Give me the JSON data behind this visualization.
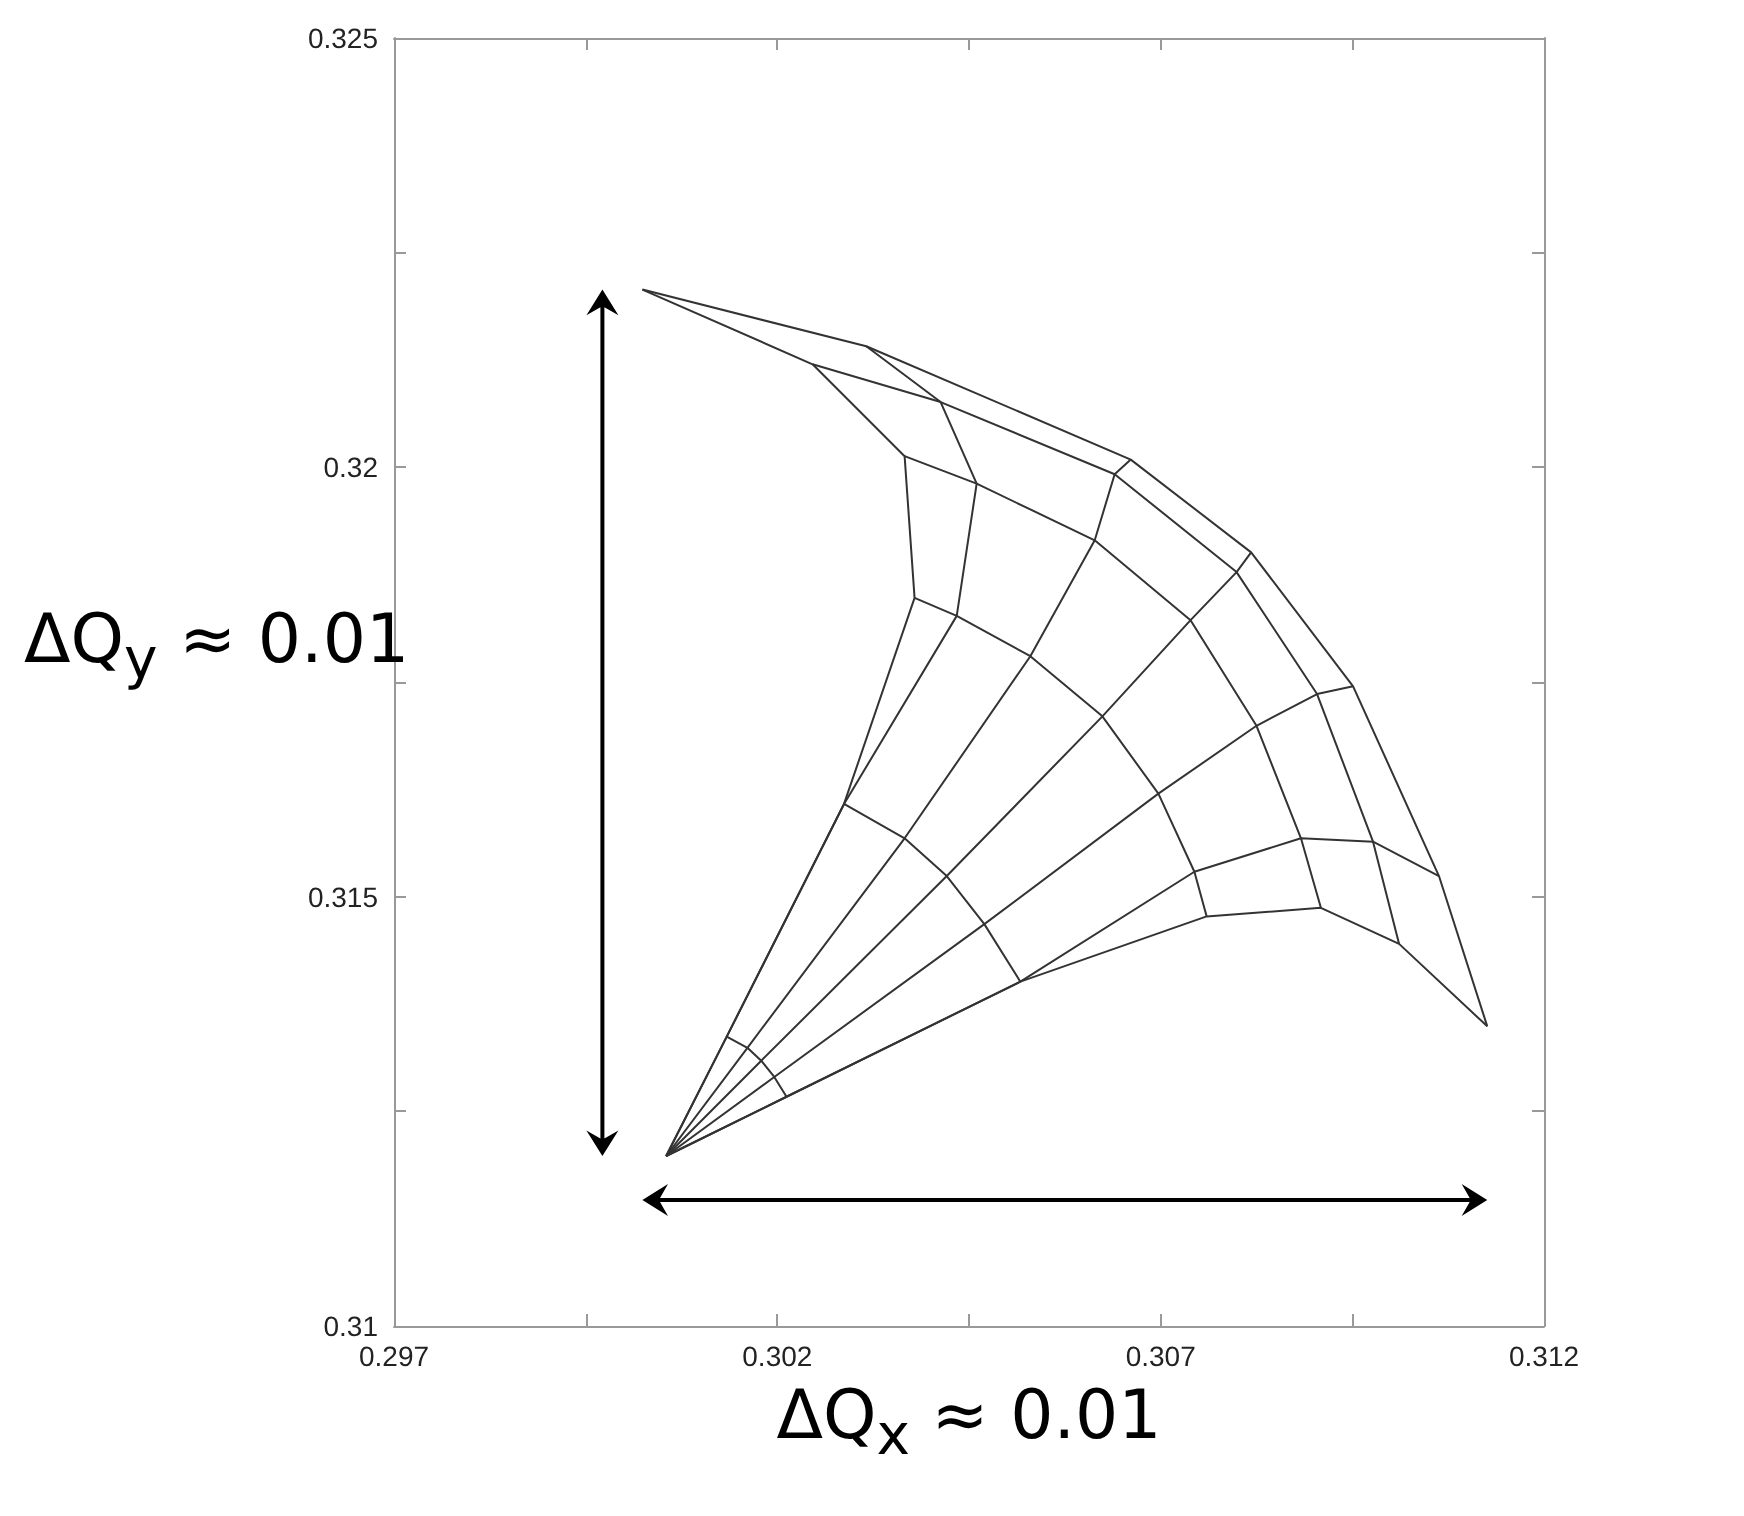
{
  "chart_data": {
    "type": "line",
    "xlim": [
      0.297,
      0.312
    ],
    "ylim": [
      0.31,
      0.325
    ],
    "xticks": [
      0.297,
      {
        "value": 0.2995,
        "label": null
      },
      0.302,
      {
        "value": 0.3045,
        "label": null
      },
      0.307,
      {
        "value": 0.3095,
        "label": null
      },
      0.312
    ],
    "yticks": [
      0.31,
      {
        "value": 0.3125,
        "label": null
      },
      0.315,
      {
        "value": 0.3175,
        "label": null
      },
      0.32,
      {
        "value": 0.3225,
        "label": null
      },
      0.325
    ],
    "grid": false,
    "marker": "none",
    "line_style": "solid",
    "annotations": [
      "ΔQ$_{y}$ ≈ 0.01",
      "ΔQ$_{x}$ ≈ 0.01"
    ],
    "series": [
      {
        "color": "#333333",
        "x": [
          0.30055,
          0.30134,
          0.30287,
          0.30379,
          0.30366,
          0.30246,
          0.30024
        ],
        "values": [
          0.31198,
          0.31337,
          0.31608,
          0.31848,
          0.32013,
          0.3212,
          0.32207
        ]
      },
      {
        "color": "#333333",
        "x": [
          0.30055,
          0.30134,
          0.30287,
          0.30434,
          0.3046,
          0.30413,
          0.30316
        ],
        "values": [
          0.31198,
          0.31337,
          0.31608,
          0.31827,
          0.31981,
          0.32076,
          0.32141
        ]
      },
      {
        "color": "#333333",
        "x": [
          0.30055,
          0.30161,
          0.30366,
          0.3053,
          0.30614,
          0.3064,
          0.30661
        ],
        "values": [
          0.31198,
          0.31324,
          0.31568,
          0.3178,
          0.31915,
          0.31992,
          0.32009
        ]
      },
      {
        "color": "#333333",
        "x": [
          0.30055,
          0.30179,
          0.30421,
          0.30624,
          0.30739,
          0.30799,
          0.30818
        ],
        "values": [
          0.31198,
          0.31309,
          0.31524,
          0.3171,
          0.31822,
          0.31878,
          0.31901
        ]
      },
      {
        "color": "#333333",
        "x": [
          0.30055,
          0.30196,
          0.3047,
          0.30697,
          0.30825,
          0.30904,
          0.30951
        ],
        "values": [
          0.31198,
          0.3129,
          0.31468,
          0.3162,
          0.31699,
          0.31736,
          0.31745
        ]
      },
      {
        "color": "#333333",
        "x": [
          0.30055,
          0.30212,
          0.30517,
          0.30744,
          0.30883,
          0.30977,
          0.31063
        ],
        "values": [
          0.31198,
          0.31267,
          0.31401,
          0.31529,
          0.31568,
          0.31564,
          0.31524
        ]
      },
      {
        "color": "#333333",
        "x": [
          0.30055,
          0.30212,
          0.30517,
          0.3076,
          0.30909,
          0.31011,
          0.31126
        ],
        "values": [
          0.31198,
          0.31267,
          0.31401,
          0.31477,
          0.31487,
          0.31445,
          0.31349
        ]
      },
      {
        "color": "#333333",
        "x": [
          0.30134,
          0.30161,
          0.30179,
          0.30196,
          0.30212
        ],
        "values": [
          0.31337,
          0.31324,
          0.31309,
          0.3129,
          0.31267
        ]
      },
      {
        "color": "#333333",
        "x": [
          0.30287,
          0.30366,
          0.30421,
          0.3047,
          0.30517
        ],
        "values": [
          0.31608,
          0.31568,
          0.31524,
          0.31468,
          0.31401
        ]
      },
      {
        "color": "#333333",
        "x": [
          0.30379,
          0.30434,
          0.3053,
          0.30624,
          0.30697,
          0.30744,
          0.3076
        ],
        "values": [
          0.31848,
          0.31827,
          0.3178,
          0.3171,
          0.3162,
          0.31529,
          0.31477
        ]
      },
      {
        "color": "#333333",
        "x": [
          0.30366,
          0.3046,
          0.30614,
          0.30739,
          0.30825,
          0.30883,
          0.30909
        ],
        "values": [
          0.32013,
          0.31981,
          0.31915,
          0.31822,
          0.31699,
          0.31568,
          0.31487
        ]
      },
      {
        "color": "#333333",
        "x": [
          0.30246,
          0.30413,
          0.3064,
          0.30799,
          0.30904,
          0.30977,
          0.31011
        ],
        "values": [
          0.3212,
          0.32076,
          0.31992,
          0.31878,
          0.31736,
          0.31564,
          0.31445
        ]
      },
      {
        "color": "#333333",
        "x": [
          0.30024,
          0.30316,
          0.30661,
          0.30818,
          0.30951,
          0.31063,
          0.31126
        ],
        "values": [
          0.32207,
          0.32141,
          0.32009,
          0.31901,
          0.31745,
          0.31524,
          0.31349
        ]
      }
    ]
  }
}
